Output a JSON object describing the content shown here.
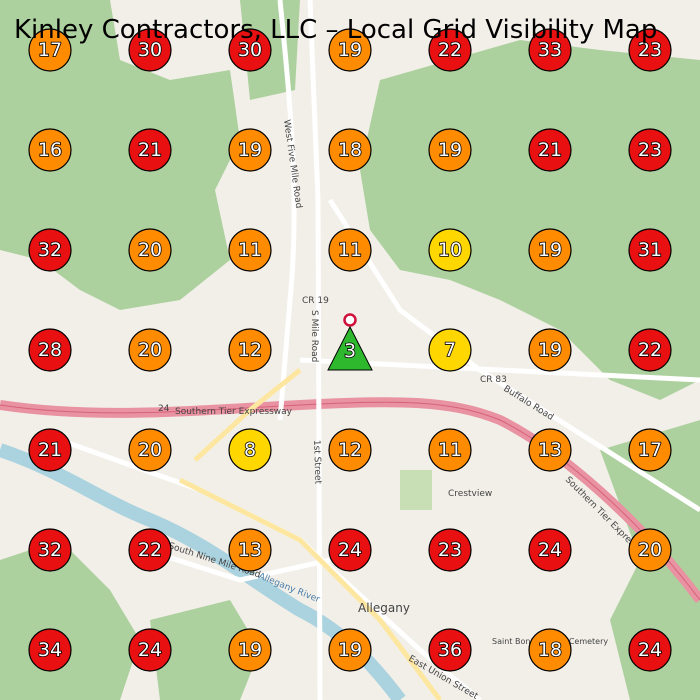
{
  "header": {
    "title": "Kinley Contractors, LLC – Local Grid Visibility Map"
  },
  "map_labels": [
    "West Five Mile Road",
    "CR 19",
    "S Mile Road",
    "CR 83",
    "Buffalo Road",
    "Southern Tier Expressway",
    "24",
    "1st Street",
    "Crestview",
    "Southern Tier Expressway",
    "South Nine Mile Road",
    "Allegany River",
    "Allegany",
    "East Union Street",
    "Saint Bonaventure Cemetery"
  ],
  "grid": {
    "rows": [
      [
        {
          "value": 17,
          "color": "#ff8c00"
        },
        {
          "value": 30,
          "color": "#e81010"
        },
        {
          "value": 30,
          "color": "#e81010"
        },
        {
          "value": 19,
          "color": "#ff8c00"
        },
        {
          "value": 22,
          "color": "#e81010"
        },
        {
          "value": 33,
          "color": "#e81010"
        },
        {
          "value": 23,
          "color": "#e81010"
        }
      ],
      [
        {
          "value": 16,
          "color": "#ff8c00"
        },
        {
          "value": 21,
          "color": "#e81010"
        },
        {
          "value": 19,
          "color": "#ff8c00"
        },
        {
          "value": 18,
          "color": "#ff8c00"
        },
        {
          "value": 19,
          "color": "#ff8c00"
        },
        {
          "value": 21,
          "color": "#e81010"
        },
        {
          "value": 23,
          "color": "#e81010"
        }
      ],
      [
        {
          "value": 32,
          "color": "#e81010"
        },
        {
          "value": 20,
          "color": "#ff8c00"
        },
        {
          "value": 11,
          "color": "#ff8c00"
        },
        {
          "value": 11,
          "color": "#ff8c00"
        },
        {
          "value": 10,
          "color": "#ffd700"
        },
        {
          "value": 19,
          "color": "#ff8c00"
        },
        {
          "value": 31,
          "color": "#e81010"
        }
      ],
      [
        {
          "value": 28,
          "color": "#e81010"
        },
        {
          "value": 20,
          "color": "#ff8c00"
        },
        {
          "value": 12,
          "color": "#ff8c00"
        },
        {
          "value": 3,
          "color": "#2eb82e",
          "shape": "triangle"
        },
        {
          "value": 7,
          "color": "#ffd700"
        },
        {
          "value": 19,
          "color": "#ff8c00"
        },
        {
          "value": 22,
          "color": "#e81010"
        }
      ],
      [
        {
          "value": 21,
          "color": "#e81010"
        },
        {
          "value": 20,
          "color": "#ff8c00"
        },
        {
          "value": 8,
          "color": "#ffd700"
        },
        {
          "value": 12,
          "color": "#ff8c00"
        },
        {
          "value": 11,
          "color": "#ff8c00"
        },
        {
          "value": 13,
          "color": "#ff8c00"
        },
        {
          "value": 17,
          "color": "#ff8c00"
        }
      ],
      [
        {
          "value": 32,
          "color": "#e81010"
        },
        {
          "value": 22,
          "color": "#e81010"
        },
        {
          "value": 13,
          "color": "#ff8c00"
        },
        {
          "value": 24,
          "color": "#e81010"
        },
        {
          "value": 23,
          "color": "#e81010"
        },
        {
          "value": 24,
          "color": "#e81010"
        },
        {
          "value": 20,
          "color": "#ff8c00"
        }
      ],
      [
        {
          "value": 34,
          "color": "#e81010"
        },
        {
          "value": 24,
          "color": "#e81010"
        },
        {
          "value": 19,
          "color": "#ff8c00"
        },
        {
          "value": 19,
          "color": "#ff8c00"
        },
        {
          "value": 36,
          "color": "#e81010"
        },
        {
          "value": 18,
          "color": "#ff8c00"
        },
        {
          "value": 24,
          "color": "#e81010"
        }
      ]
    ]
  }
}
